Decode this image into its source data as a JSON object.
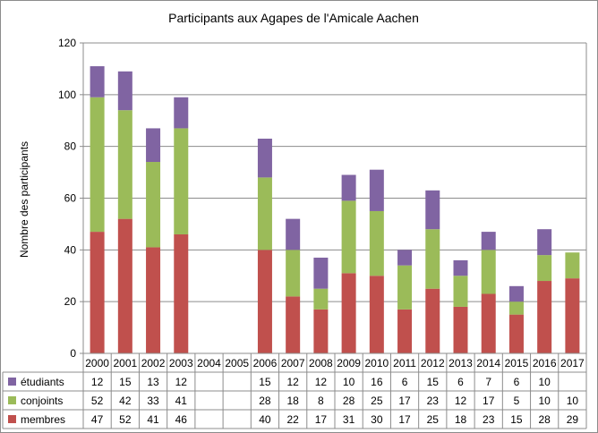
{
  "chart_data": {
    "type": "bar",
    "stacked": true,
    "title": "Participants aux Agapes de l'Amicale Aachen",
    "ylabel": "Nombre des participants",
    "xlabel": "",
    "ylim": [
      0,
      120
    ],
    "yticks": [
      0,
      20,
      40,
      60,
      80,
      100,
      120
    ],
    "grid": true,
    "legend_placement": "data-table-left",
    "categories": [
      "2000",
      "2001",
      "2002",
      "2003",
      "2004",
      "2005",
      "2006",
      "2007",
      "2008",
      "2009",
      "2010",
      "2011",
      "2012",
      "2013",
      "2014",
      "2015",
      "2016",
      "2017"
    ],
    "series": [
      {
        "name": "membres",
        "color": "#c0504d",
        "values": [
          47,
          52,
          41,
          46,
          null,
          null,
          40,
          22,
          17,
          31,
          30,
          17,
          25,
          18,
          23,
          15,
          28,
          29
        ]
      },
      {
        "name": "conjoints",
        "color": "#9bbb59",
        "values": [
          52,
          42,
          33,
          41,
          null,
          null,
          28,
          18,
          8,
          28,
          25,
          17,
          23,
          12,
          17,
          5,
          10,
          10
        ]
      },
      {
        "name": "étudiants",
        "color": "#8064a2",
        "values": [
          12,
          15,
          13,
          12,
          null,
          null,
          15,
          12,
          12,
          10,
          16,
          6,
          15,
          6,
          7,
          6,
          10,
          null
        ]
      }
    ],
    "table_row_order": [
      "étudiants",
      "conjoints",
      "membres"
    ]
  }
}
